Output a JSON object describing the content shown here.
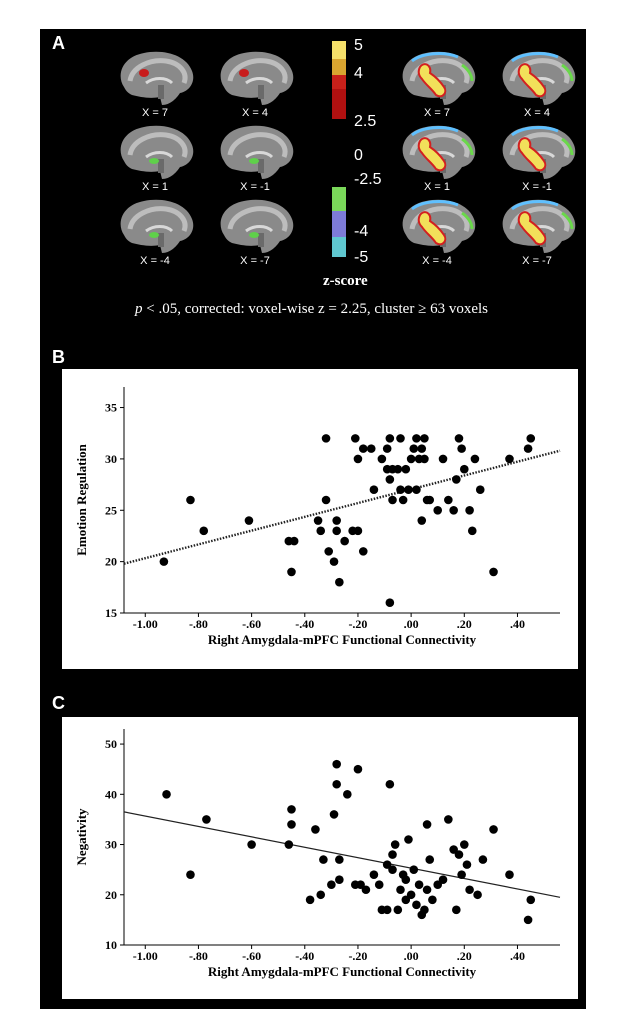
{
  "panel_a": {
    "label": "A",
    "slice_labels_left": [
      "X = 7",
      "X = 4",
      "X = 1",
      "X = -1",
      "X = -4",
      "X = -7"
    ],
    "slice_labels_right": [
      "X = 7",
      "X = 4",
      "X = 1",
      "X = -1",
      "X = -4",
      "X = -7"
    ],
    "colorbar": {
      "ticks": [
        "5",
        "4",
        "2.5",
        "0",
        "-2.5",
        "-4",
        "-5"
      ],
      "title": "z-score",
      "colors": [
        "#f5e06a",
        "#d9a530",
        "#c8201a",
        "#b01010",
        "#7ad85a",
        "#7d7bd8",
        "#5fc7d0"
      ]
    },
    "threshold_note_p": "p",
    "threshold_note_rest": " < .05, corrected: voxel-wise z = 2.25, cluster ≥ 63 voxels"
  },
  "panel_b_label": "B",
  "panel_c_label": "C",
  "chart_data": [
    {
      "type": "scatter",
      "ylabel": "Emotion Regulation",
      "xlabel": "Right Amygdala-mPFC Functional Connectivity",
      "xlim": [
        -1.08,
        0.56
      ],
      "ylim": [
        15,
        37
      ],
      "xticks": [
        -1.0,
        -0.8,
        -0.6,
        -0.4,
        -0.2,
        0.0,
        0.2,
        0.4
      ],
      "xtick_labels": [
        "-1.00",
        "-.80",
        "-.60",
        "-.40",
        "-.20",
        ".00",
        ".20",
        ".40"
      ],
      "yticks": [
        15,
        20,
        25,
        30,
        35
      ],
      "fit_line": {
        "x": [
          -1.08,
          0.56
        ],
        "y": [
          19.8,
          30.8
        ],
        "style": "dotted"
      },
      "points": [
        [
          -0.93,
          20
        ],
        [
          -0.83,
          26
        ],
        [
          -0.78,
          23
        ],
        [
          -0.61,
          24
        ],
        [
          -0.46,
          22
        ],
        [
          -0.44,
          22
        ],
        [
          -0.45,
          19
        ],
        [
          -0.35,
          24
        ],
        [
          -0.34,
          23
        ],
        [
          -0.32,
          32
        ],
        [
          -0.32,
          26
        ],
        [
          -0.31,
          21
        ],
        [
          -0.29,
          20
        ],
        [
          -0.28,
          23
        ],
        [
          -0.28,
          24
        ],
        [
          -0.27,
          18
        ],
        [
          -0.25,
          22
        ],
        [
          -0.22,
          23
        ],
        [
          -0.2,
          23
        ],
        [
          -0.18,
          21
        ],
        [
          -0.14,
          27
        ],
        [
          -0.21,
          32
        ],
        [
          -0.2,
          30
        ],
        [
          -0.18,
          31
        ],
        [
          -0.15,
          31
        ],
        [
          -0.11,
          30
        ],
        [
          -0.09,
          31
        ],
        [
          -0.08,
          32
        ],
        [
          -0.07,
          29
        ],
        [
          -0.05,
          29
        ],
        [
          -0.04,
          32
        ],
        [
          -0.09,
          29
        ],
        [
          -0.08,
          28
        ],
        [
          -0.07,
          26
        ],
        [
          -0.04,
          27
        ],
        [
          -0.03,
          26
        ],
        [
          -0.02,
          29
        ],
        [
          -0.01,
          27
        ],
        [
          -0.08,
          16
        ],
        [
          0.0,
          30
        ],
        [
          0.01,
          31
        ],
        [
          0.02,
          32
        ],
        [
          0.03,
          30
        ],
        [
          0.02,
          27
        ],
        [
          0.04,
          31
        ],
        [
          0.05,
          30
        ],
        [
          0.06,
          26
        ],
        [
          0.04,
          24
        ],
        [
          0.05,
          32
        ],
        [
          0.07,
          26
        ],
        [
          0.1,
          25
        ],
        [
          0.12,
          30
        ],
        [
          0.14,
          26
        ],
        [
          0.16,
          25
        ],
        [
          0.17,
          28
        ],
        [
          0.18,
          32
        ],
        [
          0.19,
          31
        ],
        [
          0.2,
          29
        ],
        [
          0.22,
          25
        ],
        [
          0.23,
          23
        ],
        [
          0.24,
          30
        ],
        [
          0.26,
          27
        ],
        [
          0.31,
          19
        ],
        [
          0.37,
          30
        ],
        [
          0.44,
          31
        ],
        [
          0.45,
          32
        ]
      ]
    },
    {
      "type": "scatter",
      "ylabel": "Negativity",
      "xlabel": "Right Amygdala-mPFC Functional Connectivity",
      "xlim": [
        -1.08,
        0.56
      ],
      "ylim": [
        10,
        53
      ],
      "xticks": [
        -1.0,
        -0.8,
        -0.6,
        -0.4,
        -0.2,
        0.0,
        0.2,
        0.4
      ],
      "xtick_labels": [
        "-1.00",
        "-.80",
        "-.60",
        "-.40",
        "-.20",
        ".00",
        ".20",
        ".40"
      ],
      "yticks": [
        10,
        20,
        30,
        40,
        50
      ],
      "fit_line": {
        "x": [
          -1.08,
          0.56
        ],
        "y": [
          36.5,
          19.5
        ],
        "style": "solid"
      },
      "points": [
        [
          -0.92,
          40
        ],
        [
          -0.83,
          24
        ],
        [
          -0.77,
          35
        ],
        [
          -0.6,
          30
        ],
        [
          -0.46,
          30
        ],
        [
          -0.45,
          37
        ],
        [
          -0.45,
          34
        ],
        [
          -0.38,
          19
        ],
        [
          -0.36,
          33
        ],
        [
          -0.34,
          20
        ],
        [
          -0.33,
          27
        ],
        [
          -0.3,
          22
        ],
        [
          -0.29,
          36
        ],
        [
          -0.28,
          46
        ],
        [
          -0.28,
          42
        ],
        [
          -0.27,
          23
        ],
        [
          -0.27,
          27
        ],
        [
          -0.24,
          40
        ],
        [
          -0.2,
          45
        ],
        [
          -0.21,
          22
        ],
        [
          -0.19,
          22
        ],
        [
          -0.17,
          21
        ],
        [
          -0.14,
          24
        ],
        [
          -0.12,
          22
        ],
        [
          -0.11,
          17
        ],
        [
          -0.09,
          17
        ],
        [
          -0.09,
          26
        ],
        [
          -0.08,
          42
        ],
        [
          -0.07,
          28
        ],
        [
          -0.07,
          25
        ],
        [
          -0.06,
          30
        ],
        [
          -0.05,
          17
        ],
        [
          -0.04,
          21
        ],
        [
          -0.03,
          24
        ],
        [
          -0.02,
          23
        ],
        [
          -0.01,
          31
        ],
        [
          -0.02,
          19
        ],
        [
          0.0,
          20
        ],
        [
          0.01,
          25
        ],
        [
          0.02,
          18
        ],
        [
          0.03,
          22
        ],
        [
          0.04,
          16
        ],
        [
          0.05,
          17
        ],
        [
          0.06,
          34
        ],
        [
          0.06,
          21
        ],
        [
          0.07,
          27
        ],
        [
          0.08,
          19
        ],
        [
          0.1,
          22
        ],
        [
          0.12,
          23
        ],
        [
          0.14,
          35
        ],
        [
          0.16,
          29
        ],
        [
          0.17,
          17
        ],
        [
          0.18,
          28
        ],
        [
          0.19,
          24
        ],
        [
          0.2,
          30
        ],
        [
          0.21,
          26
        ],
        [
          0.22,
          21
        ],
        [
          0.25,
          20
        ],
        [
          0.27,
          27
        ],
        [
          0.31,
          33
        ],
        [
          0.37,
          24
        ],
        [
          0.44,
          15
        ],
        [
          0.45,
          19
        ]
      ]
    }
  ]
}
